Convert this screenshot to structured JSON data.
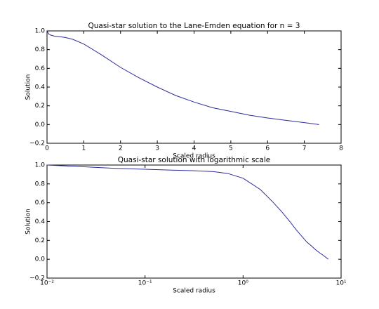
{
  "chart_data": [
    {
      "type": "line",
      "title": "Quasi-star solution to the Lane-Emden equation for n = 3",
      "xlabel": "Scaled radius",
      "ylabel": "Solution",
      "xscale": "linear",
      "x": [
        0.01,
        0.02,
        0.05,
        0.1,
        0.2,
        0.3,
        0.5,
        0.7,
        1.0,
        1.5,
        2.0,
        2.5,
        3.0,
        3.5,
        4.0,
        4.5,
        5.0,
        5.5,
        6.0,
        6.5,
        7.0,
        7.4
      ],
      "series": [
        {
          "name": "Solution",
          "color": "#2b2b9c",
          "values": [
            1.0,
            0.985,
            0.965,
            0.955,
            0.945,
            0.94,
            0.93,
            0.91,
            0.86,
            0.74,
            0.61,
            0.5,
            0.4,
            0.31,
            0.24,
            0.18,
            0.14,
            0.1,
            0.07,
            0.045,
            0.02,
            0.0
          ]
        }
      ],
      "xlim": [
        0,
        8
      ],
      "xticks": [
        0,
        1,
        2,
        3,
        4,
        5,
        6,
        7,
        8
      ],
      "ylim": [
        -0.2,
        1.0
      ],
      "yticks": [
        {
          "value": -0.2,
          "label": "−0.2"
        },
        {
          "value": 0,
          "label": "0.0"
        },
        0.2,
        0.4,
        0.6,
        0.8,
        {
          "value": 1,
          "label": "1.0"
        }
      ]
    },
    {
      "type": "line",
      "title": "Quasi-star solution with logarithmic scale",
      "xlabel": "Scaled radius",
      "ylabel": "Solution",
      "xscale": "log",
      "x": [
        0.01,
        0.02,
        0.05,
        0.1,
        0.2,
        0.3,
        0.5,
        0.7,
        1.0,
        1.5,
        2.0,
        2.5,
        3.0,
        3.5,
        4.0,
        4.5,
        5.0,
        5.5,
        6.0,
        6.5,
        7.0,
        7.4
      ],
      "series": [
        {
          "name": "Solution",
          "color": "#2b2b9c",
          "values": [
            1.0,
            0.985,
            0.965,
            0.955,
            0.945,
            0.94,
            0.93,
            0.91,
            0.86,
            0.74,
            0.61,
            0.5,
            0.4,
            0.31,
            0.24,
            0.18,
            0.14,
            0.1,
            0.07,
            0.045,
            0.02,
            0.0
          ]
        }
      ],
      "xlim": [
        0.01,
        10
      ],
      "xticks": [
        {
          "value": 0.01,
          "label": "10⁻²"
        },
        {
          "value": 0.1,
          "label": "10⁻¹"
        },
        {
          "value": 1,
          "label": "10⁰"
        },
        {
          "value": 10,
          "label": "10¹"
        }
      ],
      "ylim": [
        -0.2,
        1.0
      ],
      "yticks": [
        {
          "value": -0.2,
          "label": "−0.2"
        },
        {
          "value": 0,
          "label": "0.0"
        },
        0.2,
        0.4,
        0.6,
        0.8,
        {
          "value": 1,
          "label": "1.0"
        }
      ]
    }
  ]
}
